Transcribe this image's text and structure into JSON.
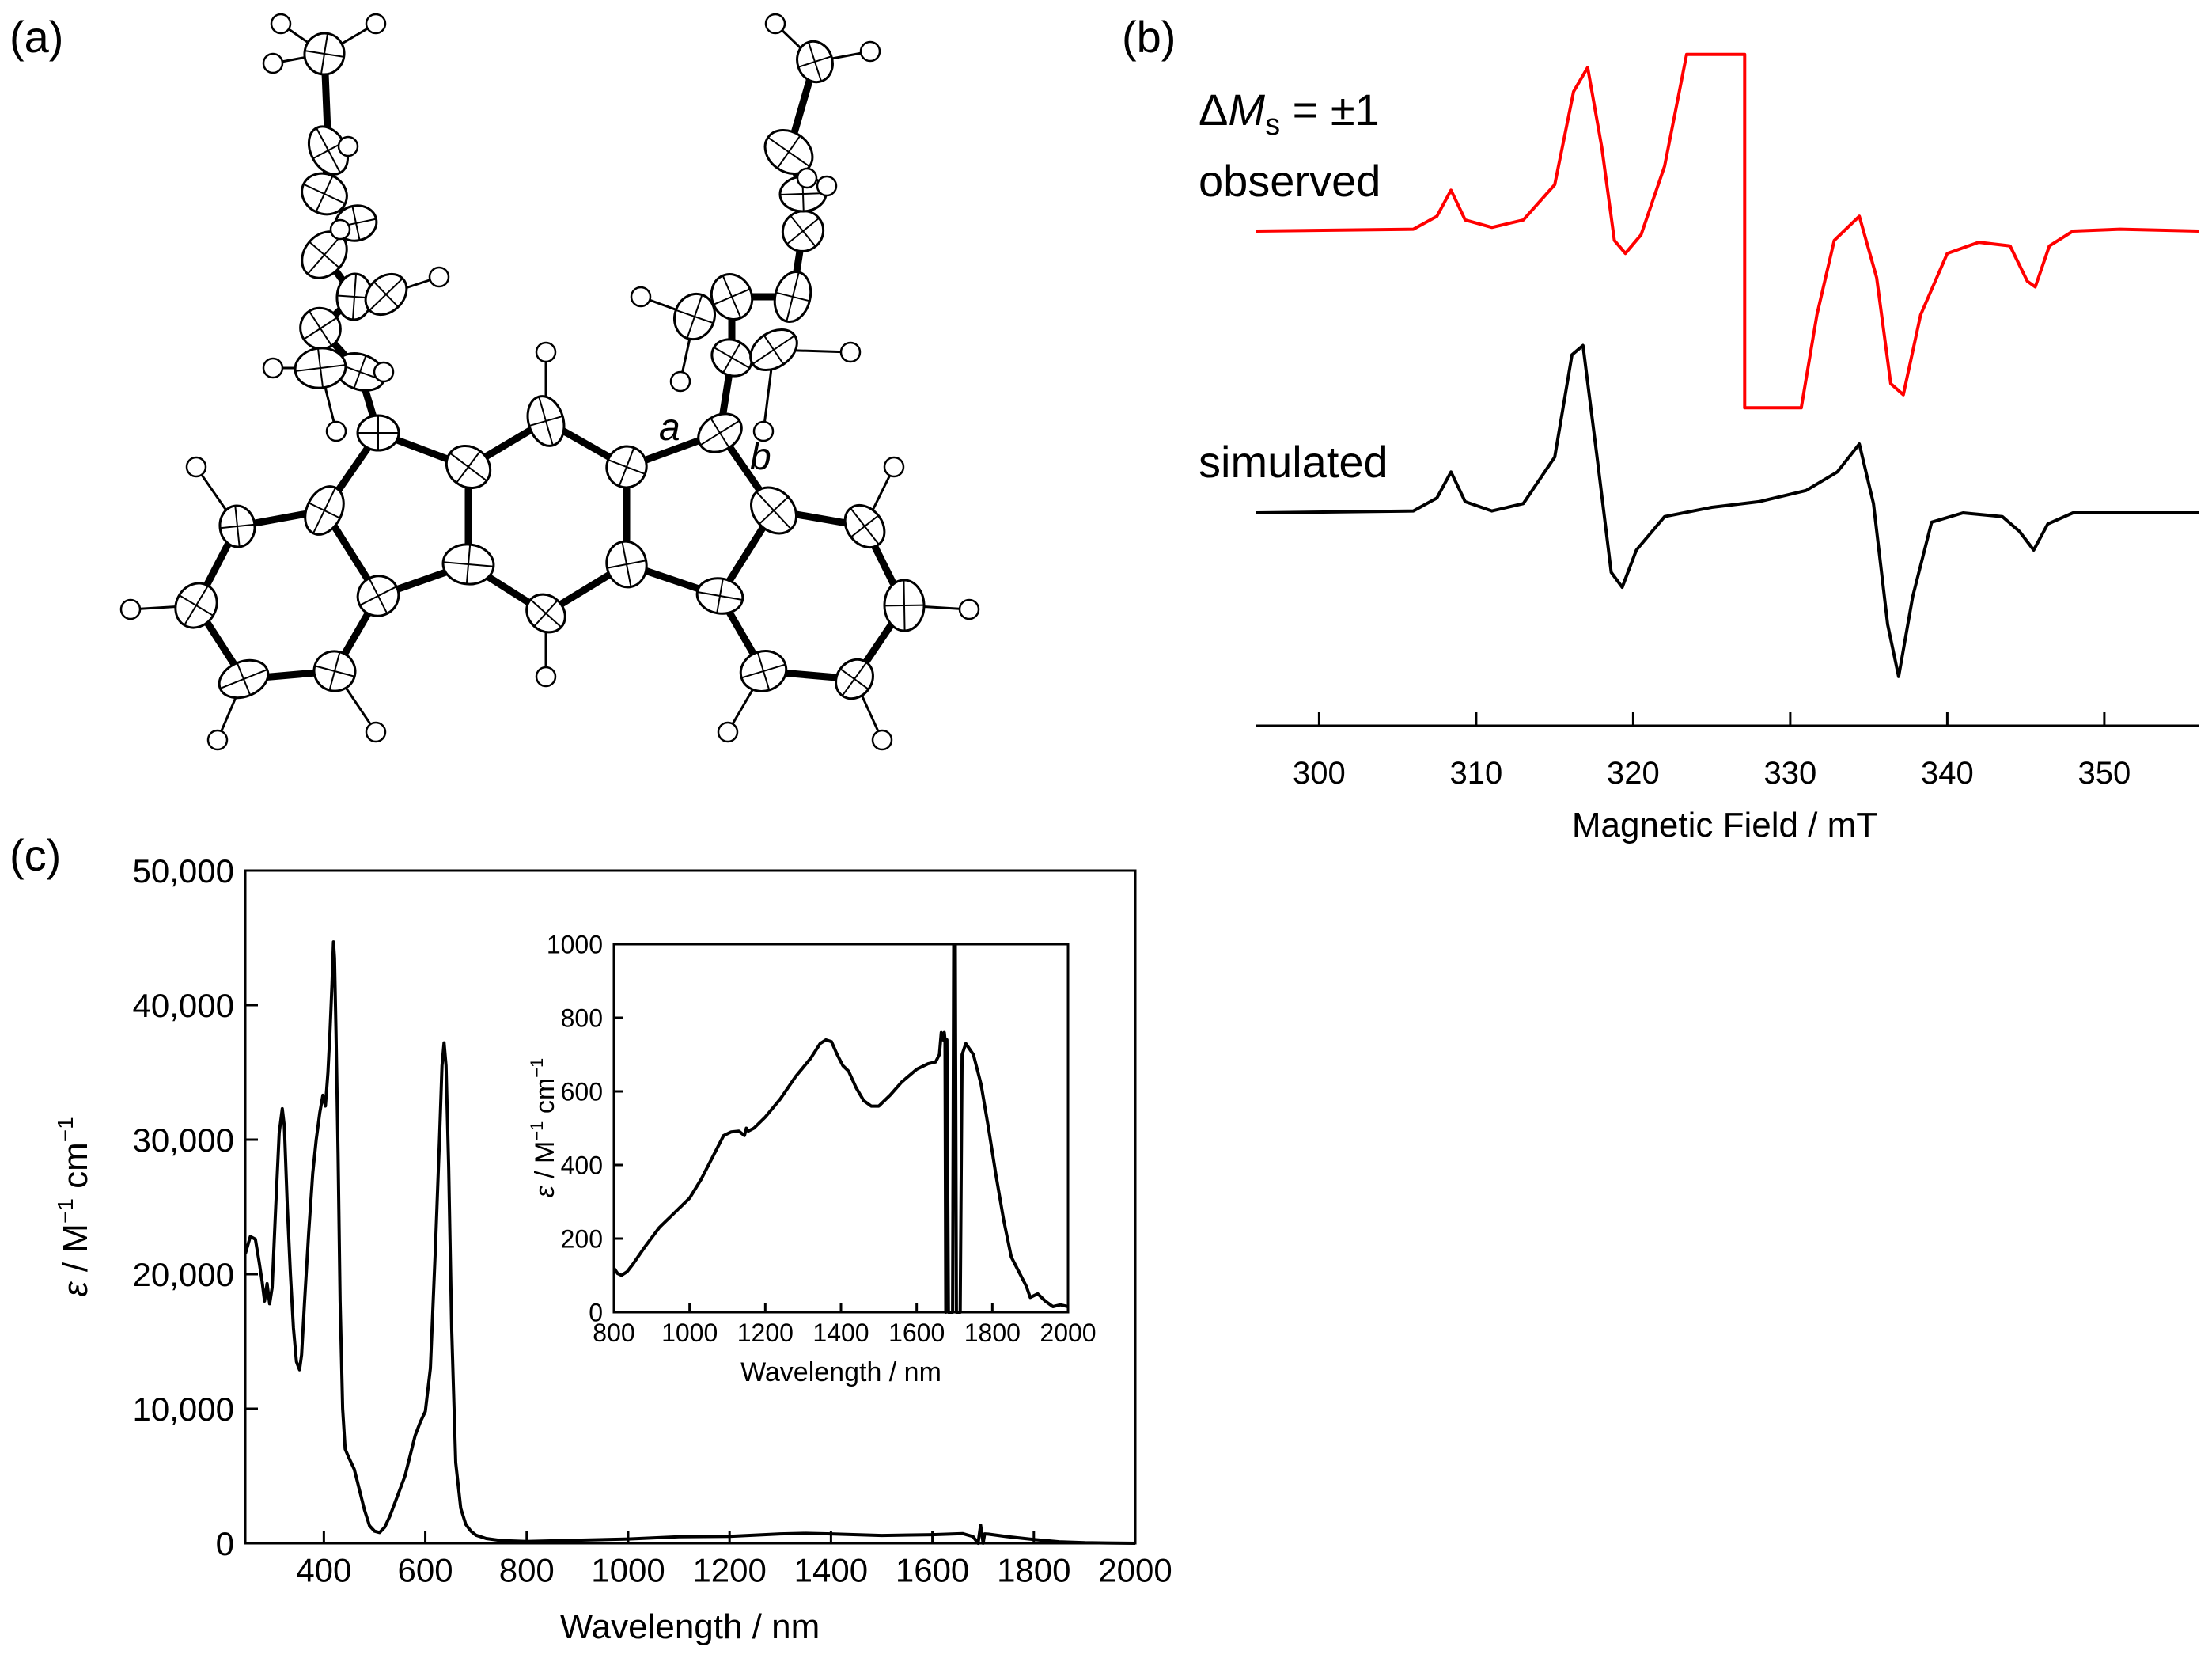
{
  "panel_labels": {
    "a": "(a)",
    "b": "(b)",
    "c": "(c)"
  },
  "structure": {
    "bond_label_a": "a",
    "bond_label_b": "b"
  },
  "chart_data": [
    {
      "id": "epr",
      "type": "line",
      "xlabel": "Magnetic Field / mT",
      "ylabel": "",
      "xlim": [
        296,
        356
      ],
      "xticks": [
        300,
        310,
        320,
        330,
        340,
        350
      ],
      "tick_labels": [
        "300",
        "310",
        "320",
        "330",
        "340",
        "350"
      ],
      "transition_label": {
        "delta": "Δ",
        "M": "M",
        "sub": "s",
        "rest": " = ±1"
      },
      "series": [
        {
          "name": "observed",
          "color": "#ff0000",
          "x": [
            296,
            306,
            307.5,
            308.4,
            309.3,
            311,
            313,
            315,
            316.2,
            317.1,
            318,
            318.8,
            319.5,
            320.5,
            322,
            323.4,
            323.4,
            327.1,
            327.1,
            330.7,
            330.7,
            331.7,
            332.8,
            334.4,
            335.5,
            336.4,
            337.2,
            338.3,
            340,
            342,
            344,
            345.1,
            345.6,
            346.5,
            348,
            351,
            356
          ],
          "y": [
            0,
            0.01,
            0.08,
            0.22,
            0.06,
            0.02,
            0.06,
            0.25,
            0.75,
            0.88,
            0.45,
            -0.05,
            -0.12,
            -0.02,
            0.35,
            0.95,
            0.95,
            0.95,
            -0.95,
            -0.95,
            -0.95,
            -0.45,
            -0.05,
            0.08,
            -0.25,
            -0.82,
            -0.88,
            -0.45,
            -0.12,
            -0.06,
            -0.08,
            -0.27,
            -0.3,
            -0.08,
            0,
            0.01,
            0
          ]
        },
        {
          "name": "simulated",
          "color": "#000000",
          "x": [
            296,
            306,
            307.5,
            308.4,
            309.3,
            311,
            313,
            315,
            316.1,
            316.8,
            317.7,
            318.6,
            319.3,
            320.2,
            322,
            325,
            328,
            331,
            333,
            334.4,
            335.3,
            336.2,
            336.9,
            337.8,
            339,
            341,
            343.5,
            344.6,
            345.5,
            346.4,
            348,
            351,
            356
          ],
          "y": [
            0,
            0.01,
            0.08,
            0.22,
            0.06,
            0.01,
            0.05,
            0.3,
            0.85,
            0.9,
            0.3,
            -0.32,
            -0.4,
            -0.2,
            -0.02,
            0.03,
            0.06,
            0.12,
            0.22,
            0.37,
            0.05,
            -0.6,
            -0.88,
            -0.45,
            -0.05,
            0.0,
            -0.02,
            -0.1,
            -0.2,
            -0.06,
            0.0,
            0.0,
            0
          ]
        }
      ]
    },
    {
      "id": "absorption",
      "type": "line",
      "xlabel": "Wavelength / nm",
      "ylabel": {
        "symbol": "ε",
        "unit": " / M",
        "exp1": "−1",
        "mid": " cm",
        "exp2": "−1"
      },
      "xlim": [
        245,
        2000
      ],
      "ylim": [
        0,
        50000
      ],
      "xticks": [
        400,
        600,
        800,
        1000,
        1200,
        1400,
        1600,
        1800,
        2000
      ],
      "yticks": [
        0,
        10000,
        20000,
        30000,
        40000,
        50000
      ],
      "x_tick_labels": [
        "400",
        "600",
        "800",
        "1000",
        "1200",
        "1400",
        "1600",
        "1800",
        "2000"
      ],
      "y_tick_labels": [
        "0",
        "10,000",
        "20,000",
        "30,000",
        "40,000",
        "50,000"
      ],
      "series": [
        {
          "name": "",
          "color": "#000000",
          "x": [
            245,
            255,
            265,
            272,
            278,
            283,
            288,
            293,
            298,
            305,
            312,
            318,
            322,
            328,
            334,
            340,
            346,
            352,
            356,
            362,
            370,
            378,
            385,
            392,
            398,
            403,
            408,
            412,
            416,
            419,
            421,
            424,
            428,
            432,
            437,
            442,
            450,
            460,
            470,
            480,
            490,
            500,
            510,
            520,
            530,
            540,
            550,
            560,
            570,
            580,
            590,
            600,
            610,
            620,
            628,
            633,
            637,
            641,
            646,
            652,
            660,
            670,
            680,
            690,
            700,
            720,
            750,
            800,
            900,
            1000,
            1100,
            1150,
            1200,
            1300,
            1350,
            1400,
            1500,
            1600,
            1660,
            1680,
            1690,
            1695,
            1700,
            1703,
            1710,
            1750,
            1800,
            1850,
            1900,
            2000
          ],
          "y": [
            21500,
            22800,
            22600,
            21000,
            19500,
            18000,
            19300,
            17800,
            19000,
            25000,
            30500,
            32300,
            31000,
            25000,
            20000,
            16000,
            13500,
            12900,
            14000,
            18000,
            23000,
            27500,
            30000,
            32000,
            33300,
            32500,
            35000,
            38000,
            41500,
            44700,
            43500,
            38000,
            29000,
            18000,
            10000,
            7000,
            6300,
            5500,
            4000,
            2500,
            1300,
            900,
            800,
            1200,
            2000,
            3000,
            4000,
            5000,
            6500,
            8000,
            9000,
            9800,
            13000,
            22000,
            30000,
            35500,
            37200,
            35500,
            28000,
            16000,
            6000,
            2600,
            1400,
            900,
            600,
            350,
            200,
            130,
            230,
            320,
            480,
            500,
            510,
            700,
            740,
            700,
            580,
            640,
            720,
            500,
            0,
            1350,
            0,
            700,
            680,
            480,
            280,
            110,
            40,
            0
          ]
        }
      ]
    },
    {
      "id": "inset",
      "type": "line",
      "xlabel": "Wavelength / nm",
      "ylabel": {
        "symbol": "ε",
        "unit": " / M",
        "exp1": "−1",
        "mid": " cm",
        "exp2": "−1"
      },
      "xlim": [
        800,
        2000
      ],
      "ylim": [
        0,
        1000
      ],
      "xticks": [
        800,
        1000,
        1200,
        1400,
        1600,
        1800,
        2000
      ],
      "yticks": [
        0,
        200,
        400,
        600,
        800,
        1000
      ],
      "x_tick_labels": [
        "800",
        "1000",
        "1200",
        "1400",
        "1600",
        "1800",
        "2000"
      ],
      "y_tick_labels": [
        "0",
        "200",
        "400",
        "600",
        "800",
        "1000"
      ],
      "series": [
        {
          "name": "",
          "color": "#000000",
          "x": [
            800,
            810,
            820,
            835,
            850,
            880,
            920,
            960,
            1000,
            1030,
            1060,
            1090,
            1110,
            1130,
            1145,
            1150,
            1155,
            1170,
            1200,
            1240,
            1280,
            1320,
            1345,
            1360,
            1375,
            1390,
            1405,
            1420,
            1440,
            1460,
            1480,
            1500,
            1530,
            1560,
            1600,
            1630,
            1650,
            1660,
            1665,
            1670,
            1673,
            1675,
            1677,
            1680,
            1684,
            1690,
            1695,
            1698,
            1700,
            1702,
            1705,
            1710,
            1715,
            1720,
            1730,
            1750,
            1770,
            1790,
            1810,
            1830,
            1850,
            1870,
            1890,
            1900,
            1920,
            1940,
            1960,
            1980,
            2000
          ],
          "y": [
            120,
            105,
            100,
            110,
            130,
            175,
            230,
            270,
            310,
            360,
            420,
            480,
            490,
            492,
            480,
            500,
            492,
            500,
            530,
            580,
            640,
            690,
            730,
            740,
            735,
            700,
            670,
            655,
            610,
            575,
            560,
            560,
            590,
            625,
            660,
            675,
            680,
            700,
            760,
            740,
            760,
            740,
            0,
            740,
            0,
            0,
            0,
            1000,
            1000,
            1000,
            0,
            0,
            0,
            700,
            730,
            700,
            620,
            500,
            370,
            250,
            150,
            110,
            70,
            40,
            50,
            30,
            15,
            20,
            15
          ]
        }
      ]
    }
  ]
}
